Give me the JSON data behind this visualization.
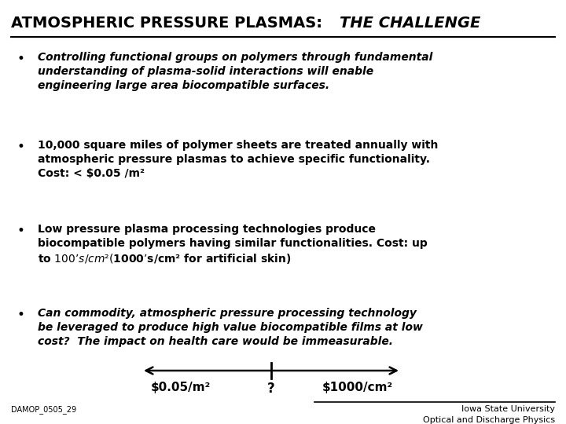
{
  "title_regular": "ATMOSPHERIC PRESSURE PLASMAS: ",
  "title_italic_bold": "THE CHALLENGE",
  "bg_color": "#ffffff",
  "text_color": "#000000",
  "bullet1_text": "Controlling functional groups on polymers through fundamental\nunderstanding of plasma-solid interactions will enable\nengineering large area biocompatible surfaces.",
  "bullet2_text": "10,000 square miles of polymer sheets are treated annually with\natmospheric pressure plasmas to achieve specific functionality.\nCost: < $0.05 /m²",
  "bullet3_text": "Low pressure plasma processing technologies produce\nbiocompatible polymers having similar functionalities. Cost: up\nto $100’s /cm²  ($1000’s/cm² for artificial skin)",
  "bullet4_text": "Can commodity, atmospheric pressure processing technology\nbe leveraged to produce high value biocompatible films at low\ncost?  The impact on health care would be immeasurable.",
  "bullet1_style": "italic",
  "bullet2_style": "normal",
  "bullet3_style": "normal",
  "bullet4_style": "italic",
  "arrow_label_left": "$0.05/m²",
  "arrow_label_mid": "?",
  "arrow_label_right": "$1000/cm²",
  "footer_left": "DAMOP_0505_29",
  "footer_right1": "Iowa State University",
  "footer_right2": "Optical and Discharge Physics",
  "title_fs": 14,
  "bullet_fs": 10,
  "arrow_fs": 11,
  "footer_fs": 8
}
